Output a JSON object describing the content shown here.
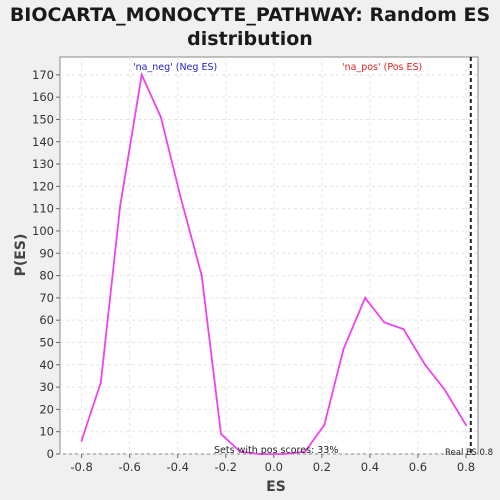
{
  "chart_data": {
    "type": "line",
    "title_lines": [
      "BIOCARTA_MONOCYTE_PATHWAY: Random ES",
      "distribution"
    ],
    "xlabel": "ES",
    "ylabel": "P(ES)",
    "xlim": [
      -0.89,
      0.85
    ],
    "ylim": [
      0,
      178
    ],
    "xticks": [
      -0.8,
      -0.6,
      -0.4,
      -0.2,
      0.0,
      0.2,
      0.4,
      0.6,
      0.8
    ],
    "xtick_labels": [
      "-0.8",
      "-0.6",
      "-0.4",
      "-0.2",
      "0.0",
      "0.2",
      "0.4",
      "0.6",
      "0.8"
    ],
    "yticks": [
      0,
      10,
      20,
      30,
      40,
      50,
      60,
      70,
      80,
      90,
      100,
      110,
      120,
      130,
      140,
      150,
      160,
      170
    ],
    "grid": true,
    "series": [
      {
        "color": "#ee44ee",
        "x": [
          -0.8,
          -0.72,
          -0.64,
          -0.55,
          -0.47,
          -0.39,
          -0.3,
          -0.22,
          -0.14,
          -0.06,
          0.04,
          0.13,
          0.21,
          0.29,
          0.38,
          0.46,
          0.54,
          0.63,
          0.71,
          0.8
        ],
        "y": [
          6,
          32,
          111,
          170,
          151,
          116,
          80,
          9,
          1,
          0,
          0,
          1,
          13,
          47,
          70,
          59,
          56,
          40,
          29,
          13
        ]
      }
    ],
    "annotations": {
      "neg_label": "'na_neg' (Neg ES)",
      "neg_color": "#2222cc",
      "pos_label": "'na_pos' (Pos ES)",
      "pos_color": "#dd2222",
      "pos_scores": "Sets with pos scores: 33%",
      "real_es": "Real ES 0.8"
    },
    "real_es_x": 0.82
  }
}
